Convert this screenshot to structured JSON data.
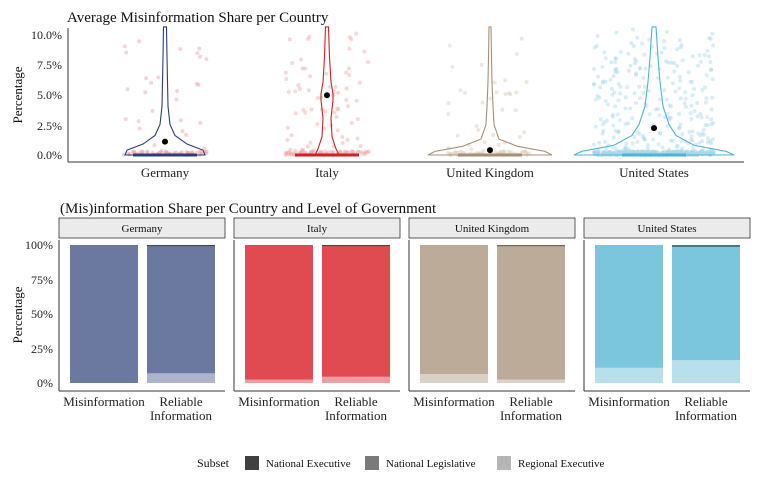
{
  "chart_data": [
    {
      "type": "violin",
      "title": "Average Misinformation Share per Country",
      "ylabel": "Percentage",
      "xlabel": "",
      "ylim": [
        0,
        10
      ],
      "yticks": [
        "0.0%",
        "2.5%",
        "5.0%",
        "7.5%",
        "10.0%"
      ],
      "ytick_values": [
        0,
        2.5,
        5,
        7.5,
        10
      ],
      "categories": [
        "Germany",
        "Italy",
        "United Kingdom",
        "United States"
      ],
      "means": [
        1.1,
        4.9,
        0.4,
        2.2
      ],
      "colors": [
        "#2c3e7a",
        "#cc2229",
        "#a89078",
        "#4fb3d6"
      ],
      "point_colors": [
        "#e8a0a8",
        "#f0a6a6",
        "#d9c9b8",
        "#a9d8ec"
      ],
      "point_counts": [
        80,
        150,
        90,
        600
      ]
    },
    {
      "type": "stacked-bar",
      "title": "(Mis)information Share per Country and Level of Government",
      "ylabel": "Percentage",
      "yticks": [
        "0%",
        "25%",
        "50%",
        "75%",
        "100%"
      ],
      "ytick_values": [
        0,
        25,
        50,
        75,
        100
      ],
      "facets": [
        {
          "name": "Germany",
          "color": "#6b789f",
          "bars": [
            {
              "label": "Misinformation",
              "national_executive": 0.0,
              "national_legislative": 100.0,
              "regional_executive": 0.0
            },
            {
              "label": "Reliable Information",
              "national_executive": 1.0,
              "national_legislative": 92.0,
              "regional_executive": 7.0
            }
          ]
        },
        {
          "name": "Italy",
          "color": "#df4b51",
          "bars": [
            {
              "label": "Misinformation",
              "national_executive": 0.0,
              "national_legislative": 97.5,
              "regional_executive": 2.5
            },
            {
              "label": "Reliable Information",
              "national_executive": 1.0,
              "national_legislative": 94.5,
              "regional_executive": 4.5
            }
          ]
        },
        {
          "name": "United Kingdom",
          "color": "#bcab99",
          "bars": [
            {
              "label": "Misinformation",
              "national_executive": 0.0,
              "national_legislative": 93.5,
              "regional_executive": 6.5
            },
            {
              "label": "Reliable Information",
              "national_executive": 1.0,
              "national_legislative": 96.5,
              "regional_executive": 2.5
            }
          ]
        },
        {
          "name": "United States",
          "color": "#7bc6dc",
          "bars": [
            {
              "label": "Misinformation",
              "national_executive": 0.0,
              "national_legislative": 89.0,
              "regional_executive": 11.0
            },
            {
              "label": "Reliable Information",
              "national_executive": 1.5,
              "national_legislative": 82.0,
              "regional_executive": 16.5
            }
          ]
        }
      ],
      "legend": {
        "title": "Subset",
        "position": "bottom",
        "items": [
          {
            "label": "National Executive",
            "color": "#404040"
          },
          {
            "label": "National Legislative",
            "color": "#7a7a7a"
          },
          {
            "label": "Regional Executive",
            "color": "#b5b5b5"
          }
        ]
      }
    }
  ]
}
